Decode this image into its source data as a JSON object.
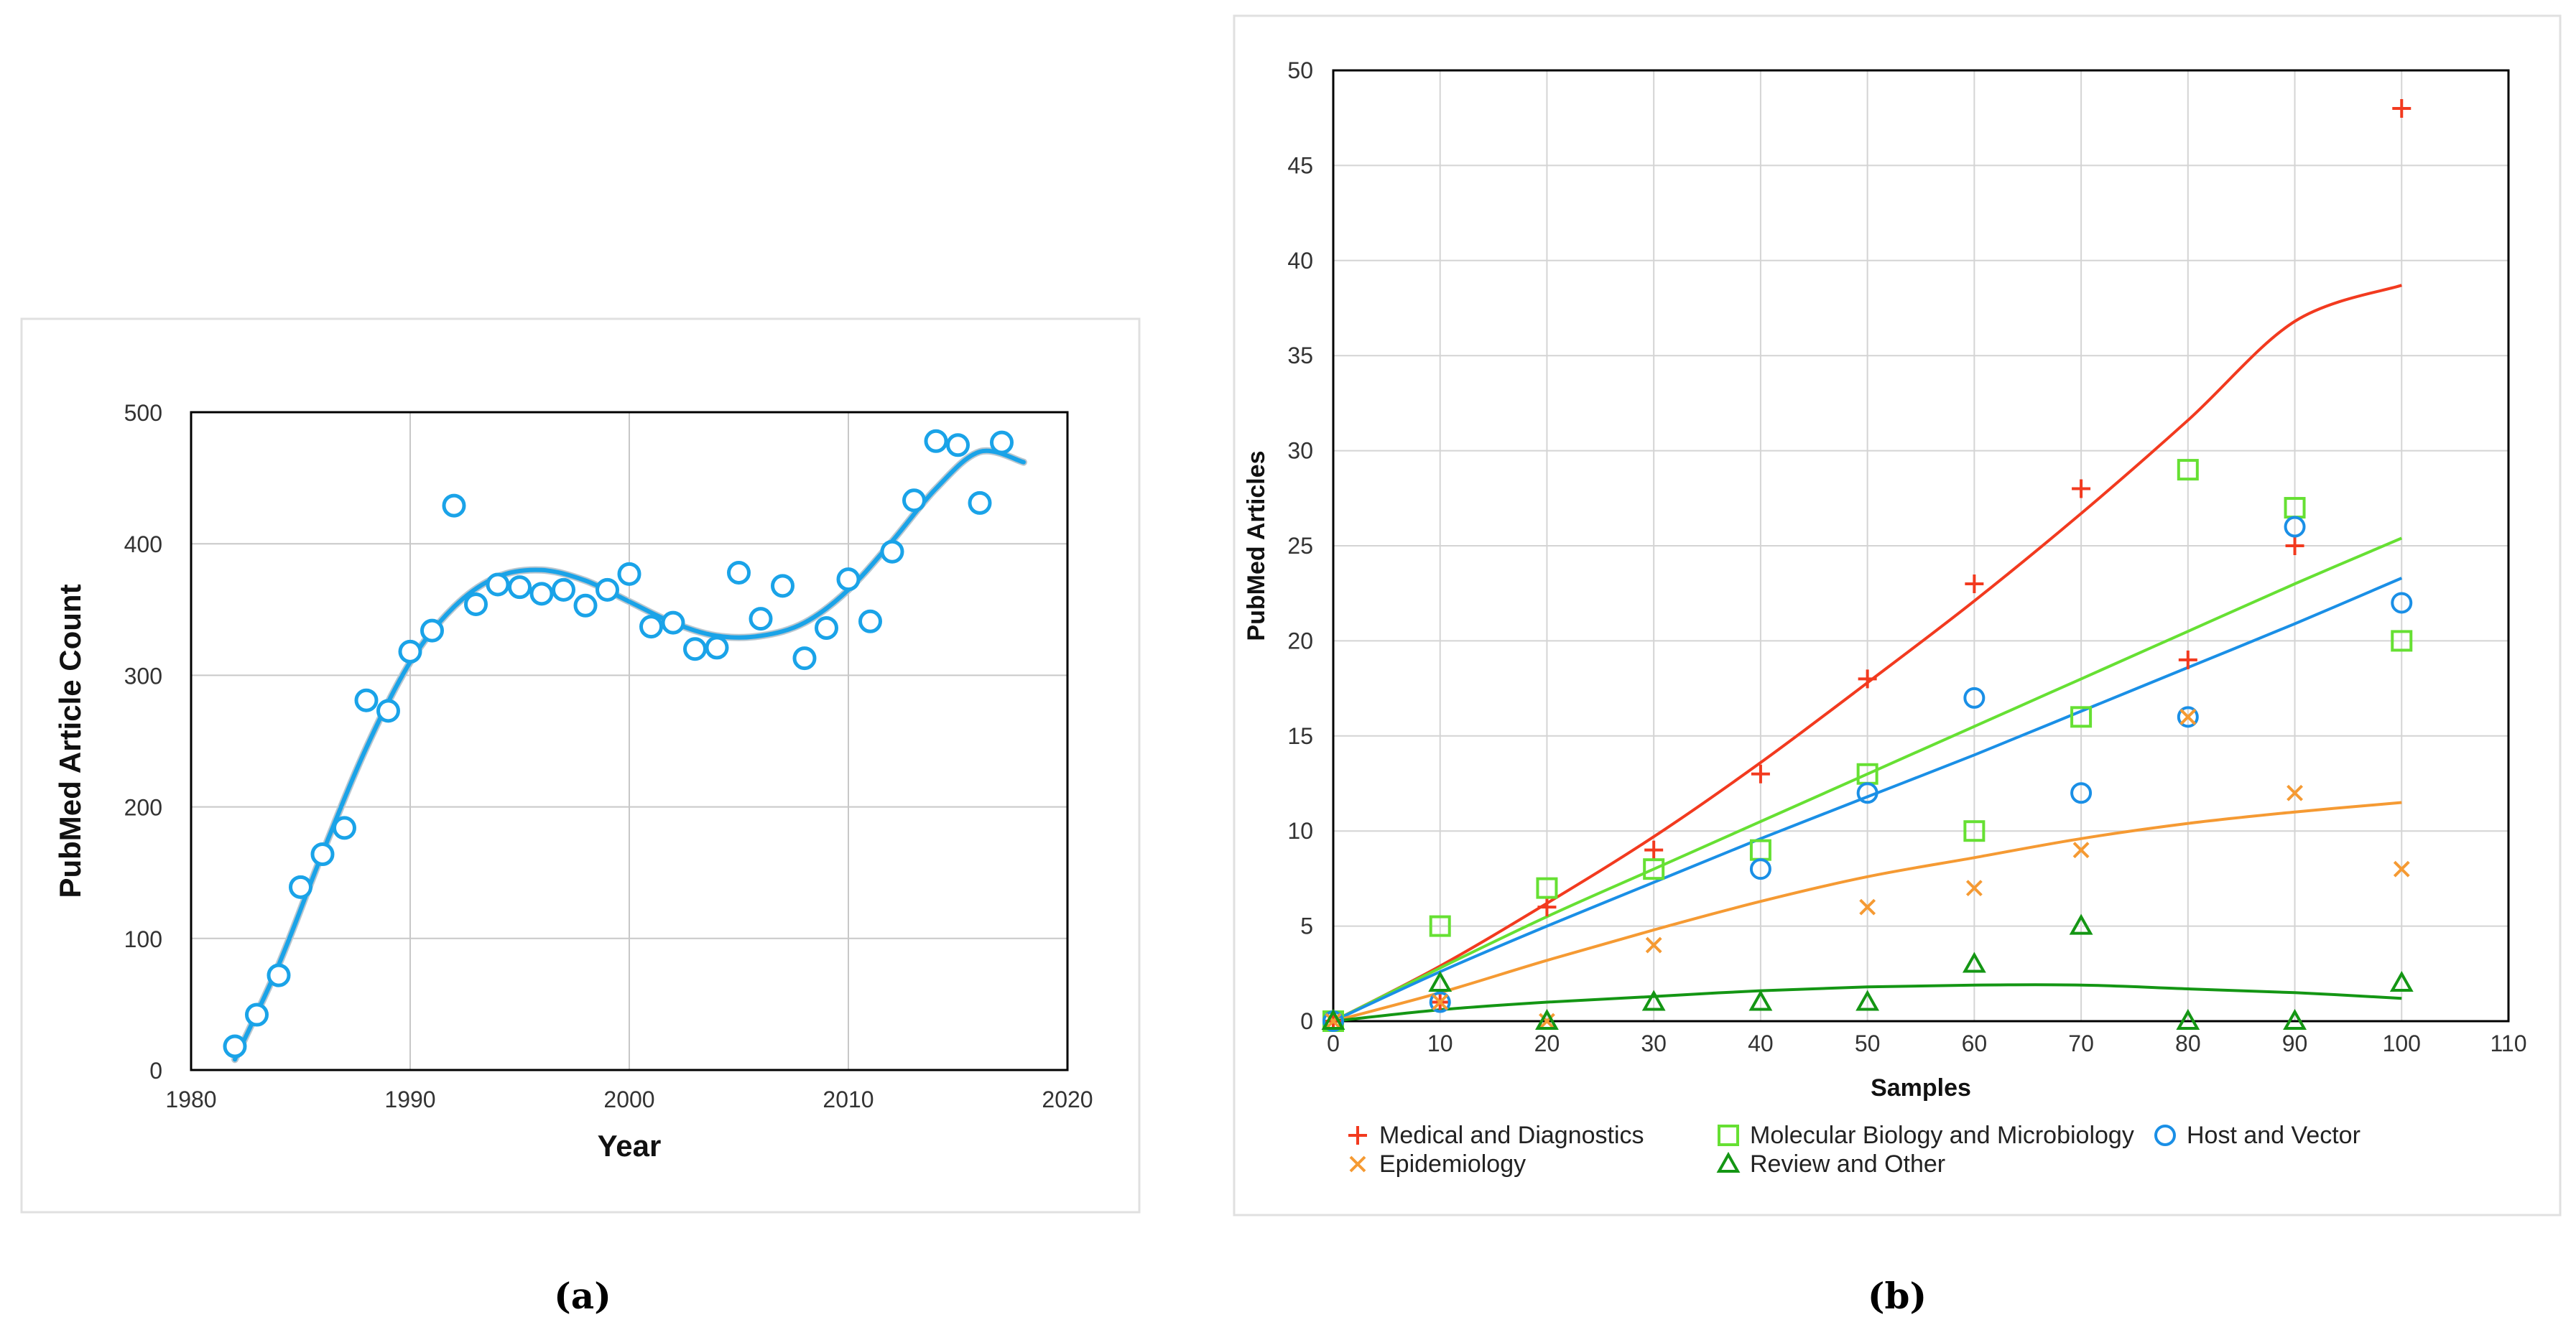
{
  "chart_data": [
    {
      "type": "scatter",
      "panel": "(a)",
      "title": "",
      "xlabel": "Year",
      "ylabel": "PubMed Article Count",
      "xlim": [
        1980,
        2020
      ],
      "ylim": [
        0,
        500
      ],
      "xticks": [
        1980,
        1990,
        2000,
        2010,
        2020
      ],
      "yticks": [
        0,
        100,
        200,
        300,
        400,
        500
      ],
      "grid": true,
      "color": "#1aa3e8",
      "series": [
        {
          "name": "PubMed Article Count",
          "marker": "circle",
          "x": [
            1982,
            1983,
            1984,
            1985,
            1986,
            1987,
            1988,
            1989,
            1990,
            1991,
            1992,
            1993,
            1994,
            1995,
            1996,
            1997,
            1998,
            1999,
            2000,
            2001,
            2002,
            2003,
            2004,
            2005,
            2006,
            2007,
            2008,
            2009,
            2010,
            2011,
            2012,
            2013,
            2014,
            2015,
            2016,
            2017
          ],
          "y": [
            18,
            42,
            72,
            139,
            164,
            184,
            281,
            273,
            318,
            334,
            429,
            354,
            369,
            367,
            362,
            365,
            353,
            365,
            377,
            337,
            340,
            320,
            321,
            378,
            343,
            368,
            313,
            336,
            373,
            341,
            394,
            433,
            478,
            475,
            431,
            477
          ]
        }
      ],
      "trend": {
        "type": "polynomial",
        "x_range": [
          1982,
          2018
        ],
        "x": [
          1982,
          1984,
          1986,
          1988,
          1990,
          1992,
          1994,
          1996,
          1998,
          2000,
          2002,
          2004,
          2006,
          2008,
          2010,
          2012,
          2014,
          2016,
          2018
        ],
        "y": [
          8,
          80,
          165,
          245,
          310,
          352,
          375,
          380,
          372,
          356,
          340,
          330,
          330,
          340,
          365,
          402,
          442,
          470,
          462
        ]
      }
    },
    {
      "type": "scatter",
      "panel": "(b)",
      "title": "",
      "xlabel": "Samples",
      "ylabel": "PubMed Articles",
      "xlim": [
        0,
        110
      ],
      "ylim": [
        0,
        50
      ],
      "xticks": [
        0,
        10,
        20,
        30,
        40,
        50,
        60,
        70,
        80,
        90,
        100,
        110
      ],
      "yticks": [
        0,
        5,
        10,
        15,
        20,
        25,
        30,
        35,
        40,
        45,
        50
      ],
      "grid": true,
      "x": [
        0,
        10,
        20,
        30,
        40,
        50,
        60,
        70,
        80,
        90,
        100
      ],
      "series": [
        {
          "name": "Medical and Diagnostics",
          "marker": "plus",
          "color": "#f23a1f",
          "values": [
            0,
            1,
            6,
            9,
            13,
            18,
            23,
            28,
            19,
            25,
            48
          ],
          "trend": [
            0,
            2.9,
            6.2,
            9.7,
            13.6,
            17.8,
            22.1,
            26.7,
            31.6,
            36.8,
            38.7
          ]
        },
        {
          "name": "Molecular Biology and Microbiology",
          "marker": "square",
          "color": "#66e033",
          "values": [
            0,
            5,
            7,
            8,
            9,
            13,
            10,
            16,
            29,
            27,
            20
          ],
          "trend": [
            0,
            2.8,
            5.5,
            8.0,
            10.5,
            13.0,
            15.5,
            18.0,
            20.5,
            23.0,
            25.4
          ]
        },
        {
          "name": "Host and Vector",
          "marker": "circle",
          "color": "#1a8fe6",
          "values": [
            0,
            1,
            null,
            null,
            8,
            12,
            17,
            12,
            16,
            26,
            22
          ],
          "trend": [
            0,
            2.6,
            5.0,
            7.3,
            9.6,
            11.8,
            14.0,
            16.3,
            18.6,
            20.9,
            23.3
          ]
        },
        {
          "name": "Epidemiology",
          "marker": "x",
          "color": "#f59a33",
          "values": [
            0,
            1,
            0,
            4,
            null,
            6,
            7,
            9,
            16,
            12,
            8
          ],
          "trend": [
            0,
            1.5,
            3.2,
            4.8,
            6.3,
            7.6,
            8.6,
            9.6,
            10.4,
            11.0,
            11.5
          ]
        },
        {
          "name": "Review and Other",
          "marker": "triangle",
          "color": "#149614",
          "values": [
            0,
            2,
            0,
            1,
            1,
            1,
            3,
            5,
            0,
            0,
            2
          ],
          "trend": [
            0,
            0.6,
            1.0,
            1.3,
            1.6,
            1.8,
            1.9,
            1.9,
            1.7,
            1.5,
            1.2
          ]
        }
      ],
      "legend": "bottom"
    }
  ],
  "captions": {
    "a": "(a)",
    "b": "(b)"
  }
}
